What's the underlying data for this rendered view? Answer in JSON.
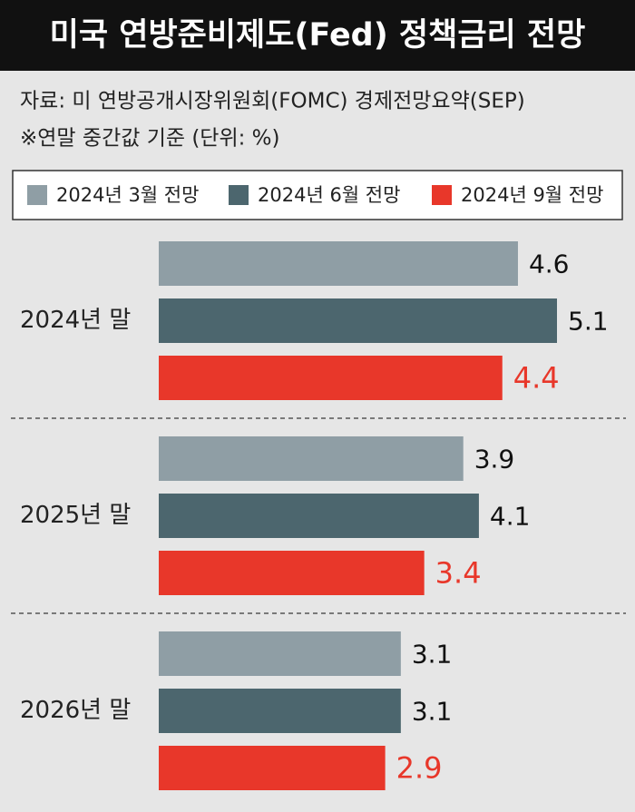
{
  "chart_data": {
    "type": "hbar",
    "title": "미국 연방준비제도(Fed) 정책금리 전망",
    "subtitle": "자료: 미 연방공개시장위원회(FOMC) 경제전망요약(SEP)",
    "note": "※연말 중간값 기준 (단위: %)",
    "categories": [
      "2024년 말",
      "2025년 말",
      "2026년 말"
    ],
    "series": [
      {
        "name": "2024년 3월 전망",
        "color": "#8f9ea5",
        "values": [
          4.6,
          3.9,
          3.1
        ]
      },
      {
        "name": "2024년 6월 전망",
        "color": "#4c666e",
        "values": [
          5.1,
          4.1,
          3.1
        ]
      },
      {
        "name": "2024년 9월 전망",
        "color": "#e8372a",
        "values": [
          4.4,
          3.4,
          2.9
        ]
      }
    ]
  }
}
